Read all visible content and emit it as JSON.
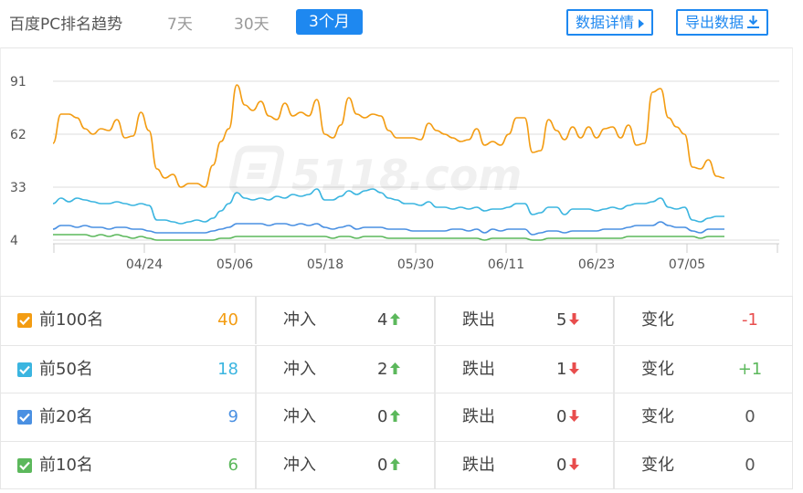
{
  "header": {
    "title": "百度PC排名趋势",
    "tabs": [
      {
        "label": "7天",
        "active": false
      },
      {
        "label": "30天",
        "active": false
      },
      {
        "label": "3个月",
        "active": true
      }
    ],
    "detail_button": "数据详情",
    "export_button": "导出数据"
  },
  "chart_data": {
    "type": "line",
    "y_ticks": [
      "91",
      "62",
      "33",
      "4"
    ],
    "ylim": [
      4,
      91
    ],
    "x_ticks": [
      "04/24",
      "05/06",
      "05/18",
      "05/30",
      "06/11",
      "06/23",
      "07/05"
    ],
    "watermark": "5118.com",
    "grid": true,
    "series": [
      {
        "name": "前100名",
        "color": "#f39c12",
        "values": [
          57,
          73,
          73,
          71,
          65,
          62,
          65,
          64,
          70,
          60,
          61,
          74,
          64,
          43,
          38,
          40,
          33,
          35,
          35,
          33,
          45,
          58,
          65,
          89,
          78,
          75,
          80,
          72,
          70,
          79,
          72,
          74,
          72,
          81,
          62,
          60,
          67,
          82,
          73,
          71,
          73,
          72,
          64,
          60,
          60,
          60,
          59,
          68,
          64,
          62,
          60,
          58,
          59,
          65,
          56,
          58,
          56,
          62,
          71,
          71,
          52,
          53,
          70,
          64,
          59,
          66,
          60,
          66,
          60,
          65,
          66,
          60,
          67,
          56,
          57,
          85,
          87,
          71,
          66,
          62,
          44,
          43,
          48,
          39,
          38
        ]
      },
      {
        "name": "前50名",
        "color": "#3bb5e0",
        "values": [
          24,
          27,
          25,
          27,
          26,
          25,
          24,
          24,
          25,
          24,
          23,
          24,
          23,
          15,
          15,
          14,
          13,
          14,
          15,
          14,
          16,
          20,
          24,
          30,
          27,
          26,
          27,
          26,
          28,
          27,
          29,
          28,
          29,
          32,
          26,
          26,
          28,
          31,
          29,
          31,
          32,
          30,
          27,
          26,
          24,
          24,
          23,
          25,
          22,
          22,
          21,
          22,
          21,
          22,
          20,
          21,
          21,
          22,
          24,
          24,
          18,
          19,
          22,
          22,
          18,
          21,
          21,
          21,
          20,
          21,
          22,
          21,
          23,
          24,
          24,
          25,
          27,
          22,
          21,
          22,
          15,
          14,
          16,
          17,
          17
        ]
      },
      {
        "name": "前20名",
        "color": "#4a90e2",
        "values": [
          10,
          12,
          12,
          11,
          12,
          11,
          11,
          10,
          11,
          11,
          10,
          10,
          9,
          8,
          8,
          8,
          8,
          8,
          8,
          8,
          9,
          10,
          11,
          13,
          13,
          13,
          13,
          12,
          13,
          13,
          12,
          13,
          12,
          13,
          11,
          10,
          11,
          12,
          10,
          11,
          11,
          11,
          10,
          10,
          10,
          9,
          9,
          9,
          9,
          9,
          10,
          10,
          9,
          10,
          8,
          10,
          9,
          10,
          10,
          10,
          7,
          8,
          9,
          9,
          8,
          9,
          9,
          9,
          9,
          10,
          10,
          10,
          11,
          12,
          12,
          12,
          14,
          12,
          11,
          11,
          9,
          8,
          10,
          10,
          10
        ]
      },
      {
        "name": "前10名",
        "color": "#5cb85c",
        "values": [
          7,
          7,
          7,
          7,
          7,
          6,
          7,
          6,
          7,
          6,
          5,
          6,
          5,
          4,
          4,
          4,
          4,
          4,
          4,
          4,
          4,
          5,
          5,
          6,
          6,
          6,
          6,
          6,
          6,
          6,
          6,
          6,
          6,
          6,
          6,
          5,
          6,
          6,
          5,
          6,
          6,
          6,
          5,
          5,
          5,
          5,
          5,
          5,
          5,
          5,
          5,
          5,
          5,
          5,
          4,
          5,
          5,
          5,
          5,
          5,
          4,
          4,
          5,
          5,
          5,
          5,
          5,
          5,
          5,
          5,
          5,
          5,
          6,
          6,
          6,
          6,
          6,
          6,
          6,
          6,
          6,
          5,
          6,
          6,
          6
        ]
      }
    ]
  },
  "stats": {
    "labels": {
      "in": "冲入",
      "out": "跌出",
      "change": "变化"
    },
    "rows": [
      {
        "label": "前100名",
        "color": "#f39c12",
        "count": "40",
        "in": "4",
        "out": "5",
        "change": "-1",
        "change_color": "#e84d4d"
      },
      {
        "label": "前50名",
        "color": "#3bb5e0",
        "count": "18",
        "in": "2",
        "out": "1",
        "change": "+1",
        "change_color": "#5cb85c"
      },
      {
        "label": "前20名",
        "color": "#4a90e2",
        "count": "9",
        "in": "0",
        "out": "0",
        "change": "0",
        "change_color": "#555555"
      },
      {
        "label": "前10名",
        "color": "#5cb85c",
        "count": "6",
        "in": "0",
        "out": "0",
        "change": "0",
        "change_color": "#555555"
      }
    ]
  }
}
